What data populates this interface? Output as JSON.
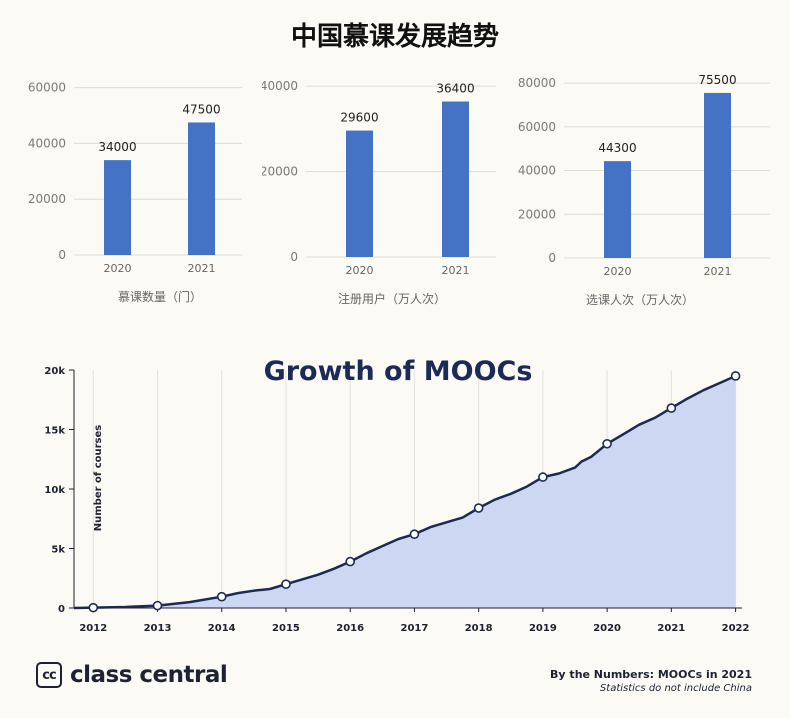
{
  "page_title": "中国慕课发展趋势",
  "chart_data": [
    {
      "type": "bar",
      "title": "",
      "xlabel": "慕课数量（门）",
      "ylabel": "",
      "categories": [
        "2020",
        "2021"
      ],
      "values": [
        34000,
        47500
      ],
      "data_labels": [
        "34000",
        "47500"
      ],
      "yticks": [
        0,
        20000,
        40000,
        60000
      ],
      "ylim": [
        0,
        62000
      ],
      "color": "#4472c4"
    },
    {
      "type": "bar",
      "title": "",
      "xlabel": "注册用户（万人次）",
      "ylabel": "",
      "categories": [
        "2020",
        "2021"
      ],
      "values": [
        29600,
        36400
      ],
      "data_labels": [
        "29600",
        "36400"
      ],
      "yticks": [
        0,
        20000,
        40000
      ],
      "ylim": [
        0,
        40500
      ],
      "color": "#4472c4"
    },
    {
      "type": "bar",
      "title": "",
      "xlabel": "选课人次（万人次）",
      "ylabel": "",
      "categories": [
        "2020",
        "2021"
      ],
      "values": [
        44300,
        75500
      ],
      "data_labels": [
        "44300",
        "75500"
      ],
      "yticks": [
        0,
        20000,
        40000,
        60000,
        80000
      ],
      "ylim": [
        0,
        80500
      ],
      "color": "#4472c4"
    },
    {
      "type": "area",
      "title": "Growth of MOOCs",
      "xlabel": "",
      "ylabel": "Number of courses",
      "x_ticks": [
        "2012",
        "2013",
        "2014",
        "2015",
        "2016",
        "2017",
        "2018",
        "2019",
        "2020",
        "2021",
        "2022"
      ],
      "y_ticks": [
        0,
        5000,
        10000,
        15000,
        20000
      ],
      "y_tick_labels": [
        "0",
        "5k",
        "10k",
        "15k",
        "20k"
      ],
      "xlim": [
        2011.7,
        2022.1
      ],
      "ylim": [
        0,
        20000
      ],
      "series_x": [
        2011.7,
        2012,
        2012.5,
        2013,
        2013.5,
        2014,
        2014.25,
        2014.5,
        2014.75,
        2015,
        2015.25,
        2015.5,
        2015.75,
        2016,
        2016.25,
        2016.5,
        2016.75,
        2017,
        2017.25,
        2017.5,
        2017.75,
        2018,
        2018.25,
        2018.5,
        2018.75,
        2019,
        2019.25,
        2019.5,
        2019.6,
        2019.75,
        2020,
        2020.25,
        2020.5,
        2020.75,
        2021,
        2021.25,
        2021.5,
        2021.75,
        2022
      ],
      "series_y": [
        0,
        30,
        80,
        200,
        500,
        950,
        1250,
        1450,
        1600,
        2000,
        2400,
        2800,
        3300,
        3900,
        4600,
        5200,
        5800,
        6200,
        6800,
        7200,
        7600,
        8400,
        9100,
        9600,
        10200,
        11000,
        11300,
        11800,
        12300,
        12700,
        13800,
        14600,
        15400,
        16000,
        16800,
        17600,
        18300,
        18900,
        19500
      ],
      "marker_x": [
        2012,
        2013,
        2014,
        2015,
        2016,
        2017,
        2018,
        2019,
        2020,
        2021,
        2022
      ],
      "marker_y": [
        30,
        200,
        950,
        2000,
        3900,
        6200,
        8400,
        11000,
        13800,
        16800,
        19500
      ],
      "line_color": "#1c2a57",
      "fill_color": "#ccd8f2"
    }
  ],
  "footer": {
    "logo_mark": "cc",
    "logo_text": "class central",
    "note_title": "By the Numbers: MOOCs in 2021",
    "note_subtitle": "Statistics do not include China"
  }
}
